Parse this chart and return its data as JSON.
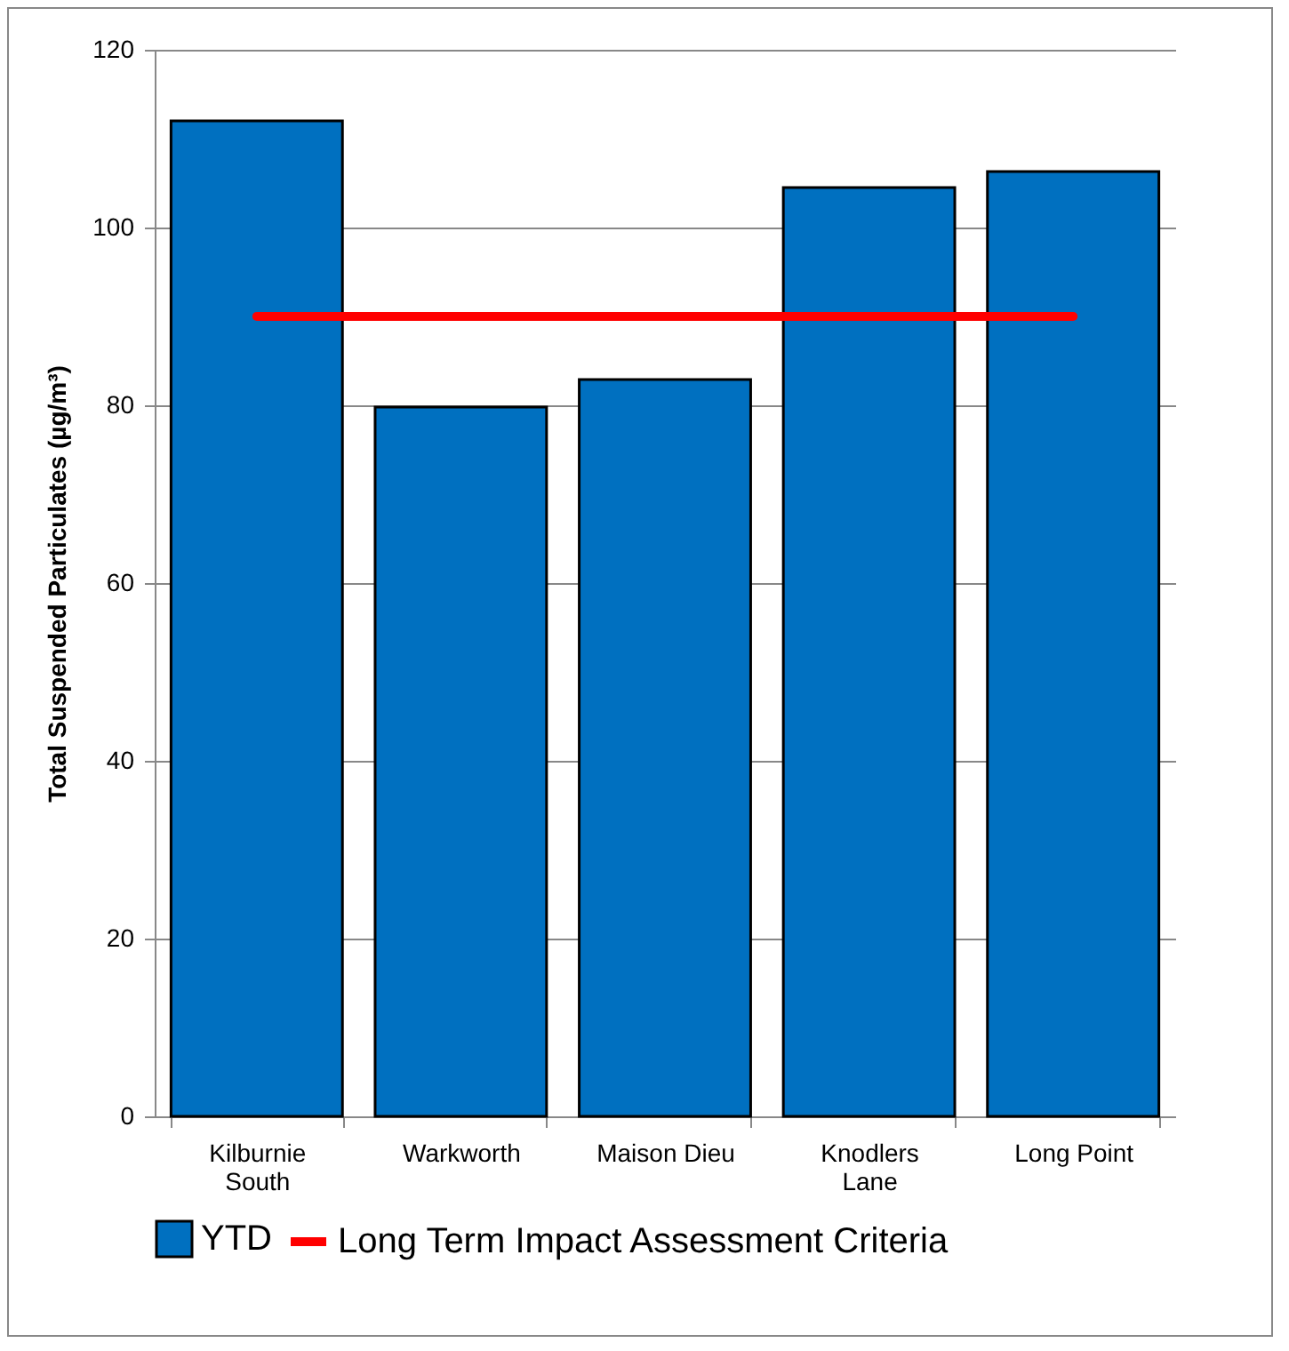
{
  "chart_data": {
    "type": "bar",
    "ylabel": "Total Suspended Particulates (µg/m³)",
    "categories": [
      "Kilburnie South",
      "Warkworth",
      "Maison Dieu",
      "Knodlers Lane",
      "Long Point"
    ],
    "series": [
      {
        "name": "YTD",
        "color": "#0070c0",
        "values": [
          112,
          79.8,
          82.9,
          104.5,
          106.3
        ]
      },
      {
        "name": "Long Term Impact Assessment Criteria",
        "type": "line",
        "color": "#ff0000",
        "values": [
          90,
          90,
          90,
          90,
          90
        ]
      }
    ],
    "ylim": [
      0,
      120
    ],
    "yticks": [
      0,
      20,
      40,
      60,
      80,
      100,
      120
    ],
    "grid": "y",
    "legend": "bottom"
  }
}
